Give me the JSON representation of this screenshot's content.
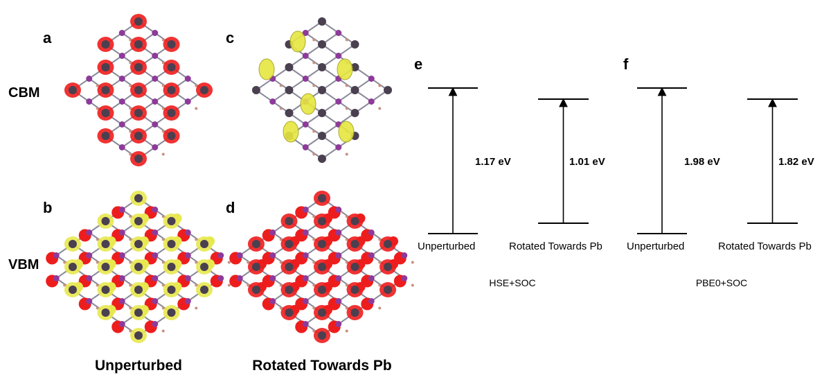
{
  "structure_panels": [
    "a",
    "b",
    "c",
    "d"
  ],
  "row_labels": [
    "CBM",
    "VBM"
  ],
  "column_labels": [
    "Unperturbed",
    "Rotated Towards Pb"
  ],
  "diagrams": [
    {
      "label": "e",
      "method": "HSE+SOC",
      "states": [
        {
          "name": "Unperturbed",
          "gap": "1.17 eV"
        },
        {
          "name": "Rotated Towards Pb",
          "gap": "1.01 eV"
        }
      ]
    },
    {
      "label": "f",
      "method": "PBE0+SOC",
      "states": [
        {
          "name": "Unperturbed",
          "gap": "1.98 eV"
        },
        {
          "name": "Rotated Towards Pb",
          "gap": "1.82 eV"
        }
      ]
    }
  ]
}
